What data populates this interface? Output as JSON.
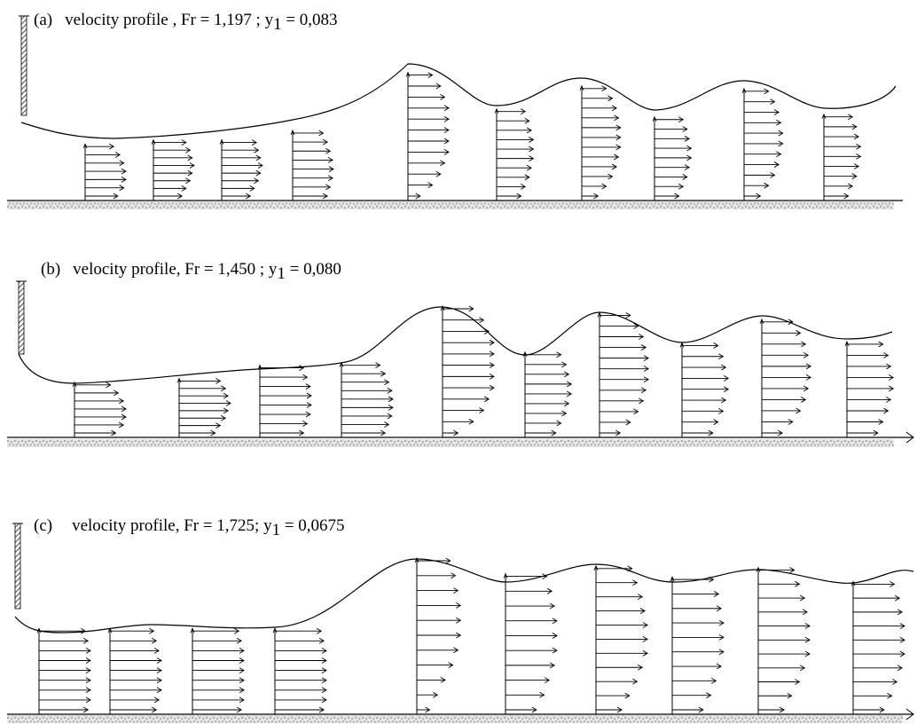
{
  "panels": [
    {
      "id": "a",
      "caption_letter": "(a)",
      "caption_main": "velocity profile , Fr = 1,197 ; y",
      "caption_sub": "1",
      "caption_tail": " = 0,083",
      "stations": [
        {
          "depth": 0.42,
          "lengths": [
            0.8,
            0.95,
            1.0,
            1.0,
            0.95,
            0.85,
            0.7
          ]
        },
        {
          "depth": 0.45,
          "lengths": [
            0.7,
            0.8,
            0.9,
            0.95,
            1.0,
            0.95,
            0.9,
            0.8
          ]
        },
        {
          "depth": 0.45,
          "lengths": [
            0.7,
            0.8,
            0.9,
            0.95,
            1.0,
            0.95,
            0.9,
            0.85
          ]
        },
        {
          "depth": 0.52,
          "lengths": [
            0.85,
            0.92,
            0.98,
            1.0,
            0.98,
            0.92,
            0.85,
            0.75
          ]
        },
        {
          "depth": 0.95,
          "lengths": [
            0.3,
            0.6,
            0.8,
            0.9,
            1.0,
            1.0,
            1.0,
            1.0,
            1.0,
            0.9,
            0.8,
            0.6
          ]
        },
        {
          "depth": 0.68,
          "lengths": [
            0.6,
            0.7,
            0.8,
            0.85,
            0.9,
            0.9,
            0.9,
            0.85,
            0.8,
            0.7
          ]
        },
        {
          "depth": 0.85,
          "lengths": [
            0.4,
            0.6,
            0.75,
            0.85,
            0.9,
            0.95,
            0.95,
            0.95,
            0.9,
            0.85,
            0.75,
            0.6
          ]
        },
        {
          "depth": 0.62,
          "lengths": [
            0.6,
            0.7,
            0.8,
            0.85,
            0.9,
            0.9,
            0.85,
            0.8,
            0.7
          ]
        },
        {
          "depth": 0.83,
          "lengths": [
            0.4,
            0.6,
            0.75,
            0.85,
            0.9,
            0.95,
            0.95,
            0.9,
            0.85,
            0.75,
            0.6
          ]
        },
        {
          "depth": 0.64,
          "lengths": [
            0.6,
            0.7,
            0.8,
            0.85,
            0.9,
            0.9,
            0.85,
            0.8,
            0.7
          ]
        }
      ]
    },
    {
      "id": "b",
      "caption_letter": "(b)",
      "caption_main": "velocity profile, Fr = 1,450 ; y",
      "caption_sub": "1",
      "caption_tail": " = 0,080",
      "stations": [
        {
          "depth": 0.42,
          "lengths": [
            0.8,
            0.95,
            1.0,
            1.0,
            0.95,
            0.85,
            0.7
          ]
        },
        {
          "depth": 0.45,
          "lengths": [
            0.7,
            0.8,
            0.9,
            0.95,
            1.0,
            0.95,
            0.9,
            0.8
          ]
        },
        {
          "depth": 0.55,
          "lengths": [
            0.85,
            0.92,
            0.98,
            1.0,
            1.0,
            0.98,
            0.92,
            0.85
          ]
        },
        {
          "depth": 0.57,
          "lengths": [
            0.85,
            0.92,
            0.98,
            1.0,
            1.0,
            0.98,
            0.92,
            0.85,
            0.75
          ]
        },
        {
          "depth": 1.0,
          "lengths": [
            0.3,
            0.6,
            0.8,
            0.9,
            1.0,
            1.0,
            1.0,
            1.0,
            1.0,
            0.9,
            0.8,
            0.6
          ]
        },
        {
          "depth": 0.65,
          "lengths": [
            0.6,
            0.7,
            0.8,
            0.85,
            0.9,
            0.9,
            0.85,
            0.8,
            0.7
          ]
        },
        {
          "depth": 0.95,
          "lengths": [
            0.4,
            0.6,
            0.75,
            0.85,
            0.9,
            0.95,
            0.95,
            0.95,
            0.9,
            0.85,
            0.75,
            0.6
          ]
        },
        {
          "depth": 0.72,
          "lengths": [
            0.6,
            0.7,
            0.8,
            0.85,
            0.9,
            0.9,
            0.85,
            0.8,
            0.7
          ]
        },
        {
          "depth": 0.9,
          "lengths": [
            0.4,
            0.6,
            0.75,
            0.85,
            0.9,
            0.95,
            0.95,
            0.9,
            0.85,
            0.75,
            0.6
          ]
        },
        {
          "depth": 0.73,
          "lengths": [
            0.6,
            0.7,
            0.8,
            0.85,
            0.9,
            0.9,
            0.85,
            0.8,
            0.7
          ]
        }
      ]
    },
    {
      "id": "c",
      "caption_letter": "(c)",
      "caption_main": "velocity profile, Fr = 1,725; y",
      "caption_sub": "1",
      "caption_tail": " = 0,0675",
      "stations": [
        {
          "depth": 0.55,
          "lengths": [
            0.95,
            1.0,
            1.0,
            1.0,
            1.0,
            1.0,
            1.0,
            0.95,
            0.9
          ]
        },
        {
          "depth": 0.55,
          "lengths": [
            0.9,
            0.95,
            1.0,
            1.0,
            1.0,
            1.0,
            0.95,
            0.9,
            0.85
          ]
        },
        {
          "depth": 0.55,
          "lengths": [
            0.95,
            1.0,
            1.0,
            1.0,
            1.0,
            1.0,
            1.0,
            0.95,
            0.9
          ]
        },
        {
          "depth": 0.55,
          "lengths": [
            0.95,
            1.0,
            1.0,
            1.0,
            1.0,
            1.0,
            1.0,
            0.95,
            0.9
          ]
        },
        {
          "depth": 1.0,
          "lengths": [
            0.25,
            0.4,
            0.55,
            0.7,
            0.8,
            0.85,
            0.85,
            0.85,
            0.8,
            0.75,
            0.65
          ]
        },
        {
          "depth": 0.9,
          "lengths": [
            0.6,
            0.75,
            0.85,
            0.95,
            1.0,
            1.0,
            1.0,
            0.95,
            0.9,
            0.8
          ]
        },
        {
          "depth": 0.95,
          "lengths": [
            0.5,
            0.65,
            0.8,
            0.9,
            1.0,
            1.0,
            1.0,
            0.95,
            0.9,
            0.8,
            0.7
          ]
        },
        {
          "depth": 0.88,
          "lengths": [
            0.6,
            0.75,
            0.85,
            0.95,
            1.0,
            1.0,
            1.0,
            0.95,
            0.9,
            0.8
          ]
        },
        {
          "depth": 0.94,
          "lengths": [
            0.5,
            0.65,
            0.8,
            0.9,
            1.0,
            1.0,
            1.0,
            0.95,
            0.9,
            0.8,
            0.7
          ]
        },
        {
          "depth": 0.85,
          "lengths": [
            0.6,
            0.75,
            0.85,
            0.95,
            1.0,
            1.0,
            1.0,
            0.95,
            0.9,
            0.8
          ]
        }
      ]
    }
  ]
}
